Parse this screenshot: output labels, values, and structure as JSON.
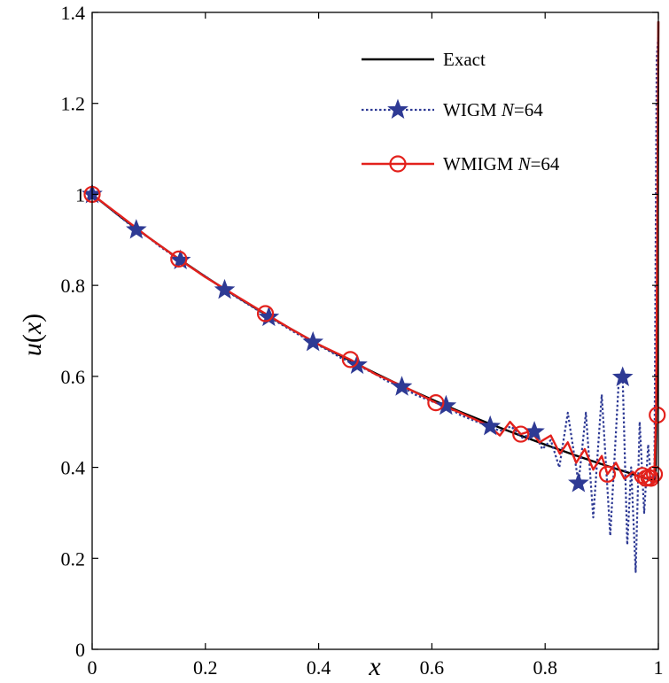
{
  "chart_data": {
    "type": "line",
    "title": "",
    "xlabel": "x",
    "ylabel": {
      "func": "u",
      "open": "(",
      "var": "x",
      "close": ")"
    },
    "xlim": [
      0,
      1
    ],
    "ylim": [
      0,
      1.4
    ],
    "xticks": [
      0,
      0.2,
      0.4,
      0.6,
      0.8,
      1
    ],
    "xtick_labels": [
      "0",
      "0.2",
      "0.4",
      "0.6",
      "0.8",
      "1"
    ],
    "yticks": [
      0,
      0.2,
      0.4,
      0.6,
      0.8,
      1,
      1.2,
      1.4
    ],
    "ytick_labels": [
      "0",
      "0.2",
      "0.4",
      "0.6",
      "0.8",
      "1",
      "1.2",
      "1.4"
    ],
    "legend_position": "top-right",
    "series": [
      {
        "name": "Exact",
        "legend": {
          "main": "Exact",
          "ital": "",
          "tail": ""
        },
        "color": "#000000",
        "style": "solid",
        "marker": "none",
        "x": [
          0,
          0.05,
          0.1,
          0.15,
          0.2,
          0.25,
          0.3,
          0.35,
          0.4,
          0.45,
          0.5,
          0.55,
          0.6,
          0.65,
          0.7,
          0.75,
          0.8,
          0.85,
          0.9,
          0.95,
          0.97,
          0.98,
          0.99,
          0.995,
          0.998,
          1.0
        ],
        "y": [
          1.0,
          0.951,
          0.905,
          0.861,
          0.819,
          0.779,
          0.741,
          0.705,
          0.67,
          0.638,
          0.607,
          0.577,
          0.549,
          0.522,
          0.497,
          0.473,
          0.45,
          0.428,
          0.407,
          0.387,
          0.379,
          0.375,
          0.372,
          0.375,
          0.6,
          1.38
        ]
      },
      {
        "name": "WIGM N=64",
        "legend": {
          "main": "WIGM ",
          "ital": "N",
          "tail": "=64"
        },
        "color": "#2e3a94",
        "style": "dotted",
        "marker": "star",
        "x": [
          0,
          0.02,
          0.04,
          0.06,
          0.078,
          0.1,
          0.12,
          0.156,
          0.18,
          0.2,
          0.234,
          0.26,
          0.28,
          0.312,
          0.34,
          0.36,
          0.39,
          0.42,
          0.44,
          0.468,
          0.5,
          0.52,
          0.547,
          0.57,
          0.6,
          0.625,
          0.65,
          0.68,
          0.703,
          0.72,
          0.74,
          0.76,
          0.781,
          0.795,
          0.81,
          0.825,
          0.84,
          0.859,
          0.872,
          0.885,
          0.9,
          0.915,
          0.93,
          0.937,
          0.945,
          0.952,
          0.96,
          0.967,
          0.975,
          0.982,
          0.988,
          0.993,
          0.997,
          1.0
        ],
        "y": [
          1.0,
          0.98,
          0.96,
          0.94,
          0.922,
          0.905,
          0.885,
          0.855,
          0.835,
          0.82,
          0.79,
          0.77,
          0.755,
          0.73,
          0.71,
          0.695,
          0.675,
          0.655,
          0.64,
          0.625,
          0.605,
          0.59,
          0.577,
          0.56,
          0.545,
          0.535,
          0.515,
          0.5,
          0.49,
          0.48,
          0.49,
          0.465,
          0.478,
          0.44,
          0.46,
          0.4,
          0.52,
          0.365,
          0.52,
          0.29,
          0.56,
          0.25,
          0.59,
          0.598,
          0.23,
          0.4,
          0.17,
          0.5,
          0.3,
          0.45,
          0.36,
          0.38,
          1.3,
          1.35
        ]
      },
      {
        "name": "WMIGM N=64",
        "legend": {
          "main": "WMIGM  ",
          "ital": "N",
          "tail": "=64"
        },
        "color": "#e3211c",
        "style": "solid",
        "marker": "circle",
        "x": [
          0,
          0.05,
          0.1,
          0.153,
          0.2,
          0.25,
          0.306,
          0.35,
          0.4,
          0.456,
          0.5,
          0.55,
          0.607,
          0.65,
          0.7,
          0.72,
          0.738,
          0.757,
          0.775,
          0.79,
          0.81,
          0.826,
          0.84,
          0.855,
          0.87,
          0.885,
          0.9,
          0.91,
          0.925,
          0.94,
          0.955,
          0.965,
          0.972,
          0.978,
          0.983,
          0.987,
          0.99,
          0.993,
          0.996,
          0.998,
          1.0
        ],
        "y": [
          1.0,
          0.953,
          0.905,
          0.858,
          0.818,
          0.78,
          0.738,
          0.705,
          0.67,
          0.637,
          0.605,
          0.578,
          0.542,
          0.52,
          0.492,
          0.47,
          0.5,
          0.473,
          0.48,
          0.455,
          0.47,
          0.43,
          0.455,
          0.41,
          0.44,
          0.395,
          0.425,
          0.385,
          0.41,
          0.375,
          0.39,
          0.378,
          0.382,
          0.376,
          0.378,
          0.376,
          0.378,
          0.385,
          0.515,
          0.9,
          1.38
        ]
      }
    ],
    "marker_points": [
      {
        "series": "WIGM N=64",
        "x": [
          0,
          0.078,
          0.156,
          0.234,
          0.312,
          0.39,
          0.468,
          0.547,
          0.625,
          0.703,
          0.781,
          0.859,
          0.937
        ],
        "y": [
          1.0,
          0.922,
          0.855,
          0.79,
          0.73,
          0.675,
          0.625,
          0.577,
          0.535,
          0.49,
          0.478,
          0.365,
          0.598
        ]
      },
      {
        "series": "WMIGM N=64",
        "x": [
          0,
          0.153,
          0.306,
          0.456,
          0.607,
          0.757,
          0.91,
          0.972,
          0.978,
          0.983,
          0.987,
          0.993,
          0.998
        ],
        "y": [
          1.0,
          0.858,
          0.738,
          0.637,
          0.542,
          0.473,
          0.385,
          0.382,
          0.376,
          0.378,
          0.376,
          0.385,
          0.515
        ]
      }
    ]
  }
}
